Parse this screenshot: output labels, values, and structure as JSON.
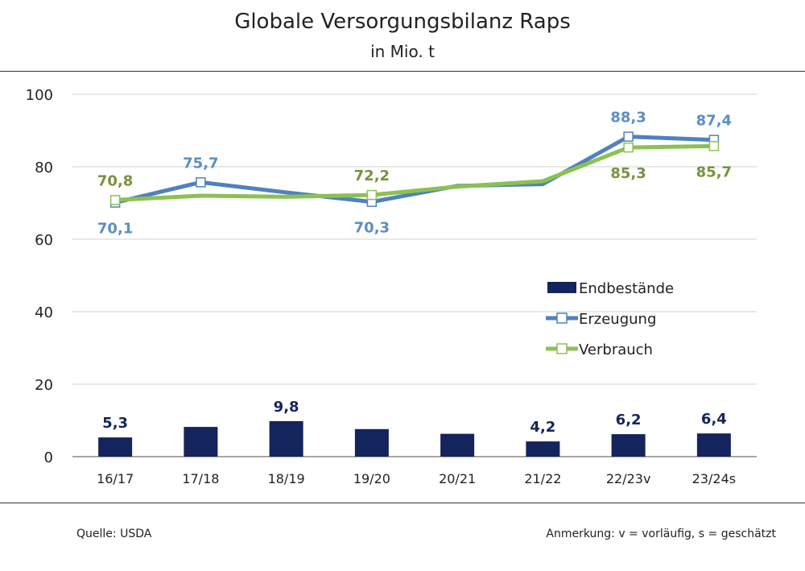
{
  "chart_data": {
    "type": "bar+line",
    "title": "Globale Versorgungsbilanz Raps",
    "subtitle": "in Mio. t",
    "categories": [
      "16/17",
      "17/18",
      "18/19",
      "19/20",
      "20/21",
      "21/22",
      "22/23v",
      "23/24s"
    ],
    "ylim": [
      0,
      100
    ],
    "yticks": [
      0,
      20,
      40,
      60,
      80,
      100
    ],
    "grid": true,
    "legend_placement": "right",
    "series": [
      {
        "name": "Endbestände",
        "type": "bar",
        "color": "#14245c",
        "values": [
          5.3,
          8.2,
          9.8,
          7.6,
          6.3,
          4.2,
          6.2,
          6.4
        ],
        "labels": [
          "5,3",
          "",
          "9,8",
          "",
          "",
          "4,2",
          "6,2",
          "6,4"
        ]
      },
      {
        "name": "Erzeugung",
        "type": "line",
        "color": "#4f81bd",
        "label_color": "#5b8ec7",
        "values": [
          70.1,
          75.7,
          72.9,
          70.3,
          74.7,
          75.2,
          88.3,
          87.4
        ],
        "labels": [
          "70,1",
          "75,7",
          "",
          "70,3",
          "",
          "",
          "88,3",
          "87,4"
        ],
        "label_pos": [
          "below",
          "above",
          "",
          "below",
          "",
          "",
          "above",
          "above"
        ]
      },
      {
        "name": "Verbrauch",
        "type": "line",
        "color": "#8cc152",
        "label_color": "#77933c",
        "values": [
          70.8,
          72.0,
          71.7,
          72.2,
          74.5,
          76.0,
          85.3,
          85.7
        ],
        "labels": [
          "70,8",
          "",
          "",
          "72,2",
          "",
          "",
          "85,3",
          "85,7"
        ],
        "label_pos": [
          "above",
          "",
          "",
          "above",
          "",
          "",
          "below",
          "below"
        ]
      }
    ]
  },
  "footer": {
    "source": "Quelle: USDA",
    "note": "Anmerkung: v = vorläufig, s = geschätzt"
  }
}
